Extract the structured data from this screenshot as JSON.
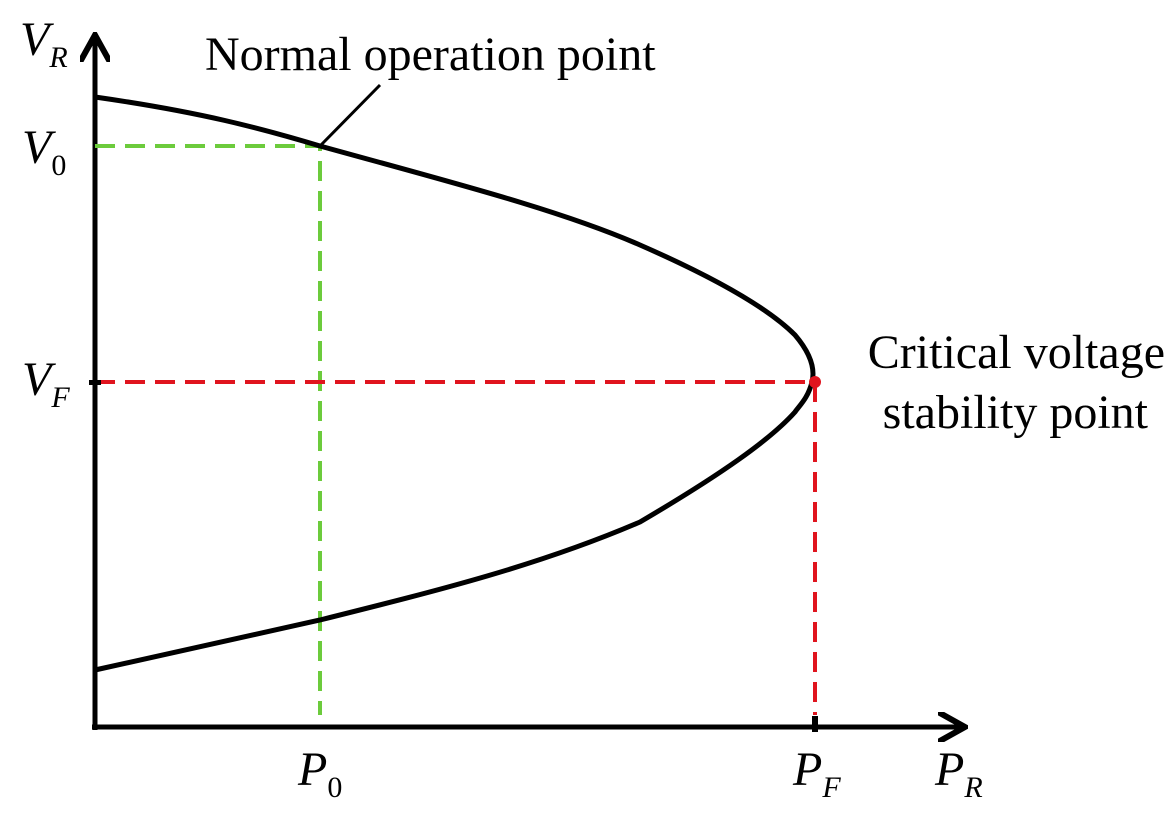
{
  "axes": {
    "y_label": {
      "main": "V",
      "sub": "R"
    },
    "x_label": {
      "main": "P",
      "sub": "R"
    }
  },
  "ticks": {
    "v0": {
      "main": "V",
      "sub": "0"
    },
    "vf": {
      "main": "V",
      "sub": "F"
    },
    "p0": {
      "main": "P",
      "sub": "0"
    },
    "pf": {
      "main": "P",
      "sub": "F"
    }
  },
  "annotations": {
    "normal": "Normal operation point",
    "critical": [
      "Critical voltage",
      "stability point"
    ]
  }
}
